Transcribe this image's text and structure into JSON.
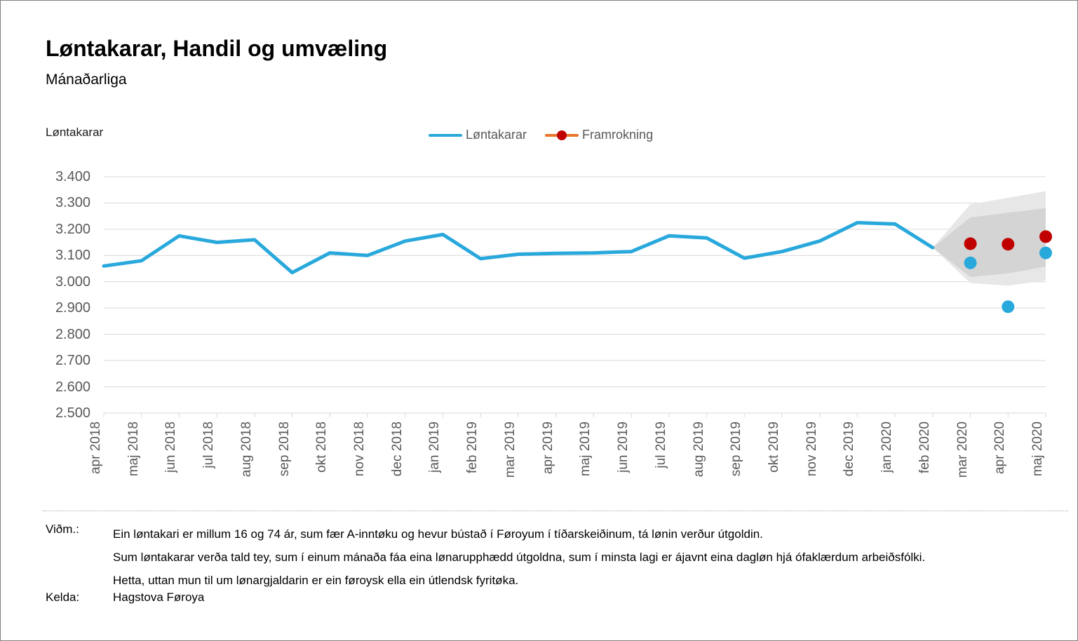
{
  "page": {
    "title": "Løntakarar, Handil og umvæling",
    "subtitle": "Mánaðarliga"
  },
  "legend": {
    "items": [
      {
        "label": "Løntakarar",
        "type": "line",
        "color": "#29A8DC"
      },
      {
        "label": "Framrokning",
        "type": "line-marker",
        "color": "#E8762C",
        "marker_color": "#C00000"
      }
    ]
  },
  "chart_data": {
    "type": "line",
    "y_axis_title": "Løntakarar",
    "grid": true,
    "ylim": [
      2500,
      3400
    ],
    "y_tick_step": 100,
    "y_tick_labels": [
      "2.500",
      "2.600",
      "2.700",
      "2.800",
      "2.900",
      "3.000",
      "3.100",
      "3.200",
      "3.300",
      "3.400"
    ],
    "categories": [
      "apr 2018",
      "maj 2018",
      "jun 2018",
      "jul 2018",
      "aug 2018",
      "sep 2018",
      "okt 2018",
      "nov 2018",
      "dec 2018",
      "jan 2019",
      "feb 2019",
      "mar 2019",
      "apr 2019",
      "maj 2019",
      "jun 2019",
      "jul 2019",
      "aug 2019",
      "sep 2019",
      "okt 2019",
      "nov 2019",
      "dec 2019",
      "jan 2020",
      "feb 2020",
      "mar 2020",
      "apr 2020",
      "maj 2020"
    ],
    "series": [
      {
        "name": "Løntakarar",
        "color": "#29A8DC",
        "values": [
          3060,
          3080,
          3175,
          3150,
          3160,
          3035,
          3110,
          3100,
          3155,
          3180,
          3088,
          3105,
          3108,
          3110,
          3115,
          3175,
          3167,
          3090,
          3115,
          3155,
          3225,
          3220,
          3130,
          null,
          null,
          null
        ]
      }
    ],
    "actual_markers": {
      "name": "Løntakarar",
      "color": "#29A8DC",
      "points": [
        {
          "category": "mar 2020",
          "value": 3072
        },
        {
          "category": "apr 2020",
          "value": 2905
        },
        {
          "category": "maj 2020",
          "value": 3110
        }
      ]
    },
    "forecast_markers": {
      "name": "Framrokning",
      "color": "#C00000",
      "points": [
        {
          "category": "mar 2020",
          "value": 3145
        },
        {
          "category": "apr 2020",
          "value": 3143
        },
        {
          "category": "maj 2020",
          "value": 3172
        }
      ]
    },
    "forecast_band": {
      "start_category": "feb 2020",
      "start_value": 3130,
      "categories": [
        "mar 2020",
        "apr 2020",
        "maj 2020"
      ],
      "outer": {
        "color": "#E7E7E7",
        "upper": [
          3295,
          3320,
          3345
        ],
        "lower": [
          2995,
          2985,
          3005
        ]
      },
      "inner": {
        "color": "#D4D4D4",
        "upper": [
          3245,
          3263,
          3280
        ],
        "lower": [
          3018,
          3032,
          3058
        ]
      }
    },
    "gridline_color": "#D9D9D9",
    "axis_color": "#D9D9D9"
  },
  "footer": {
    "vidm_label": "Viðm.:",
    "vidm_lines": [
      "Ein løntakari er millum 16 og 74 ár, sum fær A-inntøku og hevur bústað í Føroyum í tíðarskeiðinum, tá lønin verður útgoldin.",
      "Sum løntakarar verða tald tey, sum í einum mánaða fáa eina lønarupphædd útgoldna, sum í minsta lagi er ájavnt eina dagløn hjá ófaklærdum arbeiðsfólki.",
      "Hetta, uttan mun til um lønargjaldarin er ein føroysk ella ein útlendsk fyritøka."
    ],
    "kelda_label": "Kelda:",
    "kelda_value": "Hagstova Føroya"
  }
}
